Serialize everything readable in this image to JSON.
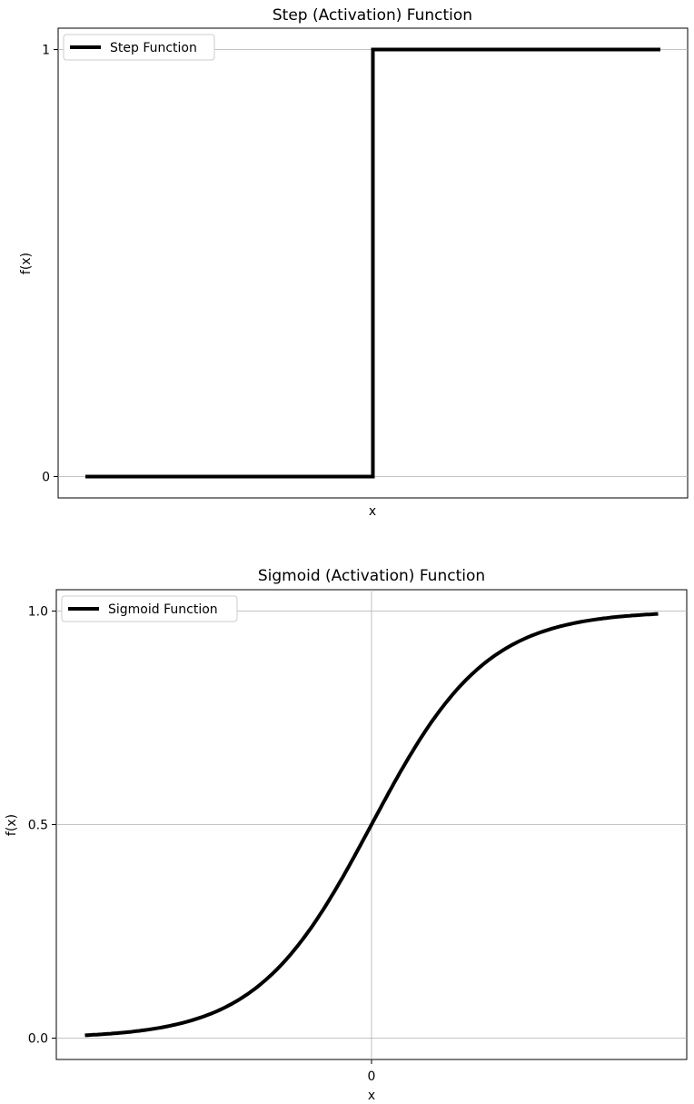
{
  "chart_data": [
    {
      "type": "line",
      "title": "Step (Activation) Function",
      "xlabel": "x",
      "ylabel": "f(x)",
      "xlim": [
        -5,
        5
      ],
      "ylim": [
        -0.05,
        1.05
      ],
      "xticks": [],
      "yticks": [
        0,
        1
      ],
      "ytick_labels": [
        "0",
        "1"
      ],
      "grid": "y-only",
      "legend_position": "top-left",
      "series": [
        {
          "name": "Step Function",
          "color": "#000000",
          "x": [
            -5,
            0,
            0,
            5
          ],
          "y": [
            0,
            0,
            1,
            1
          ]
        }
      ]
    },
    {
      "type": "line",
      "title": "Sigmoid (Activation) Function",
      "xlabel": "x",
      "ylabel": "f(x)",
      "xlim": [
        -5.5,
        5.5
      ],
      "ylim": [
        -0.05,
        1.05
      ],
      "xticks": [
        0
      ],
      "xtick_labels": [
        "0"
      ],
      "yticks": [
        0,
        0.5,
        1
      ],
      "ytick_labels": [
        "0.0",
        "0.5",
        "1.0"
      ],
      "grid": "both",
      "legend_position": "top-left",
      "series": [
        {
          "name": "Sigmoid Function",
          "color": "#000000",
          "function": "sigmoid",
          "x": [
            -5,
            -4,
            -3,
            -2,
            -1,
            0,
            1,
            2,
            3,
            4,
            5
          ],
          "y": [
            0.0067,
            0.018,
            0.047,
            0.119,
            0.269,
            0.5,
            0.731,
            0.881,
            0.953,
            0.982,
            0.9933
          ]
        }
      ]
    }
  ]
}
